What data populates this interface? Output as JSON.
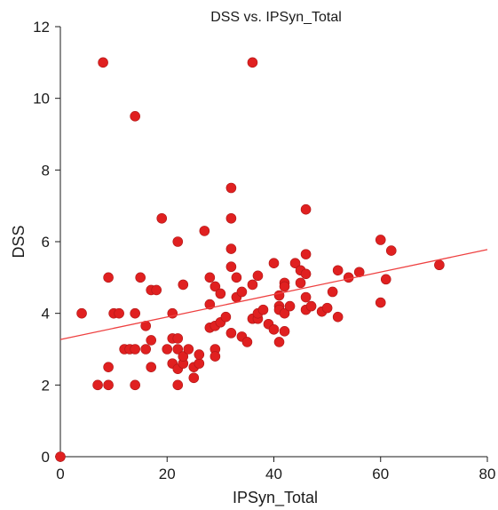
{
  "chart_data": {
    "type": "scatter",
    "title": "DSS vs. IPSyn_Total",
    "xlabel": "IPSyn_Total",
    "ylabel": "DSS",
    "xlim": [
      0,
      80
    ],
    "ylim": [
      0,
      12
    ],
    "xticks": [
      "0",
      "20",
      "40",
      "60",
      "80"
    ],
    "yticks": [
      "0",
      "2",
      "4",
      "6",
      "8",
      "10",
      "12"
    ],
    "grid": false,
    "point_color": "#e02020",
    "trend_color": "#ee4040",
    "trendline": {
      "x": [
        0,
        80
      ],
      "y": [
        3.27,
        5.78
      ]
    },
    "points": [
      [
        0,
        0
      ],
      [
        4,
        4
      ],
      [
        7,
        2
      ],
      [
        8,
        11
      ],
      [
        9,
        2
      ],
      [
        9,
        2.5
      ],
      [
        9,
        5
      ],
      [
        10,
        4
      ],
      [
        11,
        4
      ],
      [
        12,
        3
      ],
      [
        13,
        3
      ],
      [
        14,
        9.5
      ],
      [
        14,
        2
      ],
      [
        14,
        3
      ],
      [
        14,
        4
      ],
      [
        15,
        5
      ],
      [
        16,
        3
      ],
      [
        16,
        3.65
      ],
      [
        17,
        2.5
      ],
      [
        17,
        3.25
      ],
      [
        17,
        4.65
      ],
      [
        18,
        4.65
      ],
      [
        19,
        6.65
      ],
      [
        20,
        3
      ],
      [
        21,
        4
      ],
      [
        21,
        2.6
      ],
      [
        21,
        3.3
      ],
      [
        22,
        2
      ],
      [
        22,
        2.45
      ],
      [
        22,
        3
      ],
      [
        22,
        3.3
      ],
      [
        22,
        6
      ],
      [
        23,
        2.6
      ],
      [
        23,
        2.8
      ],
      [
        23,
        4.8
      ],
      [
        24,
        3
      ],
      [
        25,
        2.2
      ],
      [
        25,
        2.5
      ],
      [
        26,
        2.6
      ],
      [
        26,
        2.85
      ],
      [
        27,
        6.3
      ],
      [
        28,
        3.6
      ],
      [
        28,
        5
      ],
      [
        28,
        4.25
      ],
      [
        29,
        3
      ],
      [
        29,
        2.8
      ],
      [
        29,
        4.75
      ],
      [
        29,
        3.65
      ],
      [
        30,
        4.55
      ],
      [
        30,
        3.75
      ],
      [
        31,
        3.9
      ],
      [
        32,
        7.5
      ],
      [
        32,
        6.65
      ],
      [
        32,
        5.8
      ],
      [
        32,
        5.3
      ],
      [
        32,
        3.45
      ],
      [
        33,
        4.45
      ],
      [
        33,
        5
      ],
      [
        34,
        4.6
      ],
      [
        34,
        3.35
      ],
      [
        35,
        3.2
      ],
      [
        36,
        11
      ],
      [
        36,
        3.85
      ],
      [
        36,
        4.8
      ],
      [
        37,
        3.85
      ],
      [
        37,
        5.05
      ],
      [
        37,
        4
      ],
      [
        38,
        4.1
      ],
      [
        39,
        3.7
      ],
      [
        40,
        5.4
      ],
      [
        40,
        3.55
      ],
      [
        41,
        4.5
      ],
      [
        41,
        3.2
      ],
      [
        41,
        4.2
      ],
      [
        41,
        4.1
      ],
      [
        42,
        4.85
      ],
      [
        42,
        4.75
      ],
      [
        42,
        4
      ],
      [
        42,
        3.5
      ],
      [
        43,
        4.2
      ],
      [
        44,
        5.4
      ],
      [
        45,
        5.2
      ],
      [
        45,
        4.85
      ],
      [
        46,
        6.9
      ],
      [
        46,
        5.65
      ],
      [
        46,
        5.1
      ],
      [
        46,
        4.45
      ],
      [
        46,
        4.1
      ],
      [
        47,
        4.2
      ],
      [
        49,
        4.05
      ],
      [
        50,
        4.15
      ],
      [
        51,
        4.6
      ],
      [
        52,
        5.2
      ],
      [
        52,
        3.9
      ],
      [
        54,
        5
      ],
      [
        56,
        5.15
      ],
      [
        60,
        6.05
      ],
      [
        60,
        4.3
      ],
      [
        61,
        4.95
      ],
      [
        62,
        5.75
      ],
      [
        71,
        5.35
      ]
    ]
  }
}
